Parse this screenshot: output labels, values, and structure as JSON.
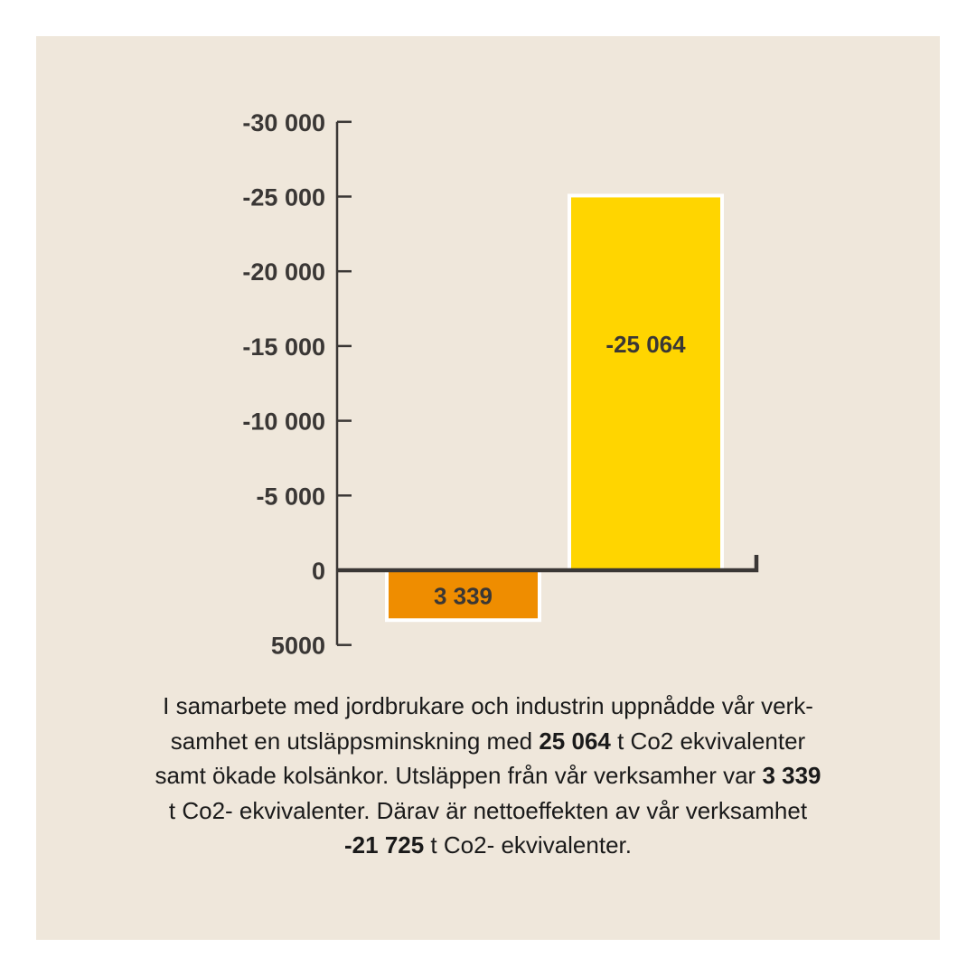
{
  "chart_data": {
    "type": "bar",
    "categories": [
      "",
      ""
    ],
    "values": [
      3339,
      -25064
    ],
    "data_labels": [
      "3 339",
      "-25 064"
    ],
    "bar_colors": [
      "#ef8d00",
      "#ffd500"
    ],
    "ylim": [
      5000,
      -30000
    ],
    "y_inverted": true,
    "yticks": [
      -30000,
      -25000,
      -20000,
      -15000,
      -10000,
      -5000,
      0,
      5000
    ],
    "ytick_labels": [
      "-30 000",
      "-25 000",
      "-20 000",
      "-15 000",
      "-10 000",
      "-5 000",
      "0",
      "5000"
    ],
    "grid": false,
    "legend": "none",
    "title": "",
    "xlabel": "",
    "ylabel": ""
  },
  "colors": {
    "background": "#efe7db",
    "axis": "#3a3735",
    "bar_border": "#ffffff"
  },
  "caption": [
    {
      "text": "I samarbete med jordbrukare och industrin uppnådde vår verk-",
      "bold": false,
      "br": true
    },
    {
      "text": "samhet en utsläppsminskning med ",
      "bold": false
    },
    {
      "text": "25 064",
      "bold": true
    },
    {
      "text": " t Co2 ekvivalenter",
      "bold": false,
      "br": true
    },
    {
      "text": "samt ökade kolsänkor. Utsläppen från vår verksamher var ",
      "bold": false
    },
    {
      "text": "3 339",
      "bold": true,
      "br": true
    },
    {
      "text": "t Co2- ekvivalenter. Därav är nettoeffekten av vår verksamhet",
      "bold": false,
      "br": true
    },
    {
      "text": "-21 725",
      "bold": true
    },
    {
      "text": " t Co2- ekvivalenter.",
      "bold": false
    }
  ]
}
